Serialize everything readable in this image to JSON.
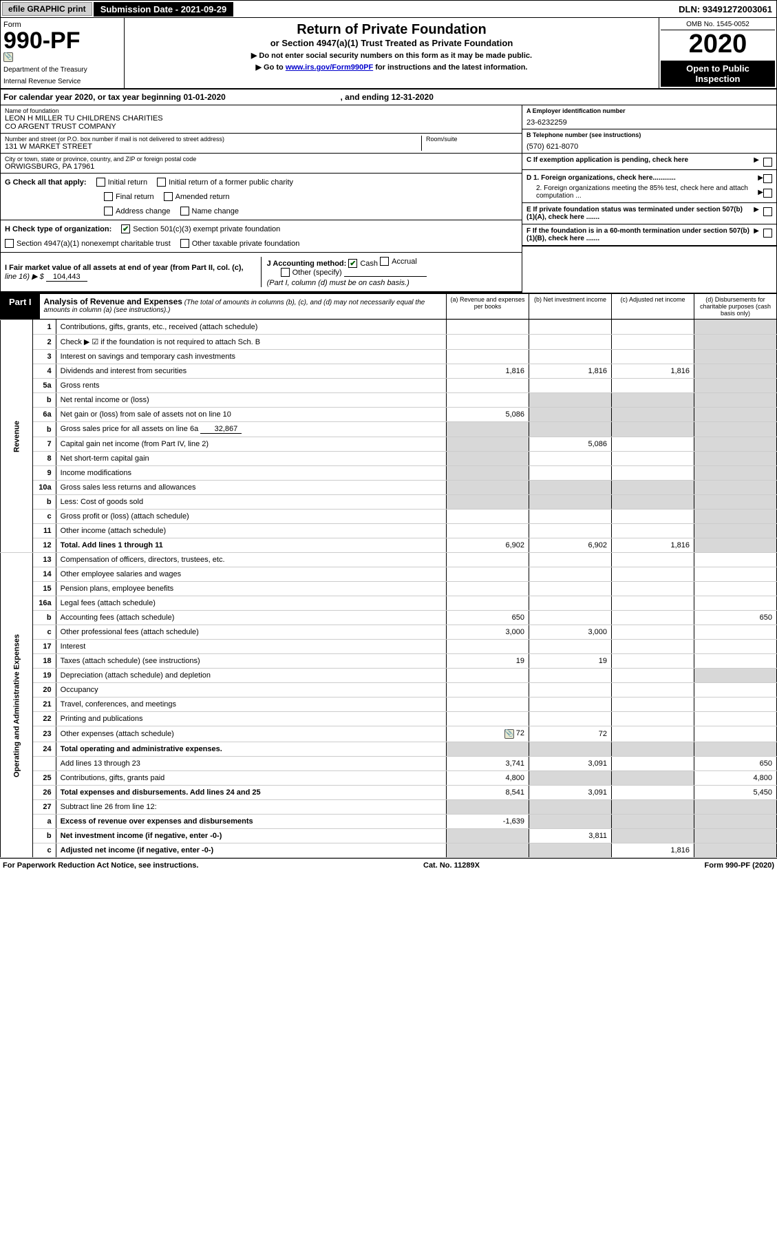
{
  "topbar": {
    "efile_label": "efile GRAPHIC print",
    "sub_date_label": "Submission Date - 2021-09-29",
    "dln": "DLN: 93491272003061"
  },
  "header": {
    "form_label": "Form",
    "form_number": "990-PF",
    "dept1": "Department of the Treasury",
    "dept2": "Internal Revenue Service",
    "title": "Return of Private Foundation",
    "subtitle": "or Section 4947(a)(1) Trust Treated as Private Foundation",
    "note1": "▶ Do not enter social security numbers on this form as it may be made public.",
    "note2_pre": "▶ Go to ",
    "note2_link": "www.irs.gov/Form990PF",
    "note2_post": " for instructions and the latest information.",
    "omb": "OMB No. 1545-0052",
    "year": "2020",
    "open_pub1": "Open to Public",
    "open_pub2": "Inspection"
  },
  "calendar": {
    "text_a": "For calendar year 2020, or tax year beginning 01-01-2020",
    "text_b": ", and ending 12-31-2020"
  },
  "foundation": {
    "name_lbl": "Name of foundation",
    "name1": "LEON H MILLER TU CHILDRENS CHARITIES",
    "name2": "CO ARGENT TRUST COMPANY",
    "addr_lbl": "Number and street (or P.O. box number if mail is not delivered to street address)",
    "addr": "131 W MARKET STREET",
    "room_lbl": "Room/suite",
    "city_lbl": "City or town, state or province, country, and ZIP or foreign postal code",
    "city": "ORWIGSBURG, PA  17961",
    "ein_lbl": "A Employer identification number",
    "ein": "23-6232259",
    "phone_lbl": "B Telephone number (see instructions)",
    "phone": "(570) 621-8070",
    "c_lbl": "C If exemption application is pending, check here",
    "d1_lbl": "D 1. Foreign organizations, check here............",
    "d2_lbl": "2. Foreign organizations meeting the 85% test, check here and attach computation ...",
    "e_lbl": "E  If private foundation status was terminated under section 507(b)(1)(A), check here .......",
    "f_lbl": "F  If the foundation is in a 60-month termination under section 507(b)(1)(B), check here .......",
    "g_lbl": "G Check all that apply:",
    "g_initial": "Initial return",
    "g_initial_former": "Initial return of a former public charity",
    "g_final": "Final return",
    "g_amended": "Amended return",
    "g_addr": "Address change",
    "g_name": "Name change",
    "h_lbl": "H Check type of organization:",
    "h_501c3": "Section 501(c)(3) exempt private foundation",
    "h_4947": "Section 4947(a)(1) nonexempt charitable trust",
    "h_other": "Other taxable private foundation",
    "i_lbl": "I Fair market value of all assets at end of year (from Part II, col. (c),",
    "i_line": "line 16) ▶ $",
    "i_val": "104,443",
    "j_lbl": "J Accounting method:",
    "j_cash": "Cash",
    "j_accrual": "Accrual",
    "j_other": "Other (specify)",
    "j_note": "(Part I, column (d) must be on cash basis.)"
  },
  "part1": {
    "label": "Part I",
    "title": "Analysis of Revenue and Expenses",
    "desc": "(The total of amounts in columns (b), (c), and (d) may not necessarily equal the amounts in column (a) (see instructions).)",
    "col_a": "(a)  Revenue and expenses per books",
    "col_b": "(b)  Net investment income",
    "col_c": "(c)  Adjusted net income",
    "col_d": "(d)  Disbursements for charitable purposes (cash basis only)",
    "revenue_label": "Revenue",
    "expenses_label": "Operating and Administrative Expenses"
  },
  "rows": {
    "r1": {
      "n": "1",
      "d": "Contributions, gifts, grants, etc., received (attach schedule)"
    },
    "r2": {
      "n": "2",
      "d": "Check ▶ ☑ if the foundation is not required to attach Sch. B"
    },
    "r3": {
      "n": "3",
      "d": "Interest on savings and temporary cash investments"
    },
    "r4": {
      "n": "4",
      "d": "Dividends and interest from securities",
      "a": "1,816",
      "b": "1,816",
      "c": "1,816"
    },
    "r5a": {
      "n": "5a",
      "d": "Gross rents"
    },
    "r5b": {
      "n": "b",
      "d": "Net rental income or (loss)"
    },
    "r6a": {
      "n": "6a",
      "d": "Net gain or (loss) from sale of assets not on line 10",
      "a": "5,086"
    },
    "r6b": {
      "n": "b",
      "d": "Gross sales price for all assets on line 6a",
      "inline": "32,867"
    },
    "r7": {
      "n": "7",
      "d": "Capital gain net income (from Part IV, line 2)",
      "b": "5,086"
    },
    "r8": {
      "n": "8",
      "d": "Net short-term capital gain"
    },
    "r9": {
      "n": "9",
      "d": "Income modifications"
    },
    "r10a": {
      "n": "10a",
      "d": "Gross sales less returns and allowances"
    },
    "r10b": {
      "n": "b",
      "d": "Less: Cost of goods sold"
    },
    "r10c": {
      "n": "c",
      "d": "Gross profit or (loss) (attach schedule)"
    },
    "r11": {
      "n": "11",
      "d": "Other income (attach schedule)"
    },
    "r12": {
      "n": "12",
      "d": "Total. Add lines 1 through 11",
      "a": "6,902",
      "b": "6,902",
      "c": "1,816",
      "bold": true
    },
    "r13": {
      "n": "13",
      "d": "Compensation of officers, directors, trustees, etc."
    },
    "r14": {
      "n": "14",
      "d": "Other employee salaries and wages"
    },
    "r15": {
      "n": "15",
      "d": "Pension plans, employee benefits"
    },
    "r16a": {
      "n": "16a",
      "d": "Legal fees (attach schedule)"
    },
    "r16b": {
      "n": "b",
      "d": "Accounting fees (attach schedule)",
      "a": "650",
      "dd": "650"
    },
    "r16c": {
      "n": "c",
      "d": "Other professional fees (attach schedule)",
      "a": "3,000",
      "b": "3,000"
    },
    "r17": {
      "n": "17",
      "d": "Interest"
    },
    "r18": {
      "n": "18",
      "d": "Taxes (attach schedule) (see instructions)",
      "a": "19",
      "b": "19"
    },
    "r19": {
      "n": "19",
      "d": "Depreciation (attach schedule) and depletion"
    },
    "r20": {
      "n": "20",
      "d": "Occupancy"
    },
    "r21": {
      "n": "21",
      "d": "Travel, conferences, and meetings"
    },
    "r22": {
      "n": "22",
      "d": "Printing and publications"
    },
    "r23": {
      "n": "23",
      "d": "Other expenses (attach schedule)",
      "a": "72",
      "b": "72",
      "icon": true
    },
    "r24": {
      "n": "24",
      "d": "Total operating and administrative expenses.",
      "bold": true
    },
    "r24b": {
      "n": "",
      "d": "Add lines 13 through 23",
      "a": "3,741",
      "b": "3,091",
      "dd": "650"
    },
    "r25": {
      "n": "25",
      "d": "Contributions, gifts, grants paid",
      "a": "4,800",
      "dd": "4,800"
    },
    "r26": {
      "n": "26",
      "d": "Total expenses and disbursements. Add lines 24 and 25",
      "a": "8,541",
      "b": "3,091",
      "dd": "5,450",
      "bold": true
    },
    "r27": {
      "n": "27",
      "d": "Subtract line 26 from line 12:"
    },
    "r27a": {
      "n": "a",
      "d": "Excess of revenue over expenses and disbursements",
      "a": "-1,639",
      "bold": true
    },
    "r27b": {
      "n": "b",
      "d": "Net investment income (if negative, enter -0-)",
      "b": "3,811",
      "bold": true
    },
    "r27c": {
      "n": "c",
      "d": "Adjusted net income (if negative, enter -0-)",
      "c": "1,816",
      "bold": true
    }
  },
  "footer": {
    "pra": "For Paperwork Reduction Act Notice, see instructions.",
    "cat": "Cat. No. 11289X",
    "form": "Form 990-PF (2020)"
  },
  "colors": {
    "black": "#000000",
    "shade": "#d8d8d8",
    "link": "#0000cc",
    "check": "#006000"
  }
}
